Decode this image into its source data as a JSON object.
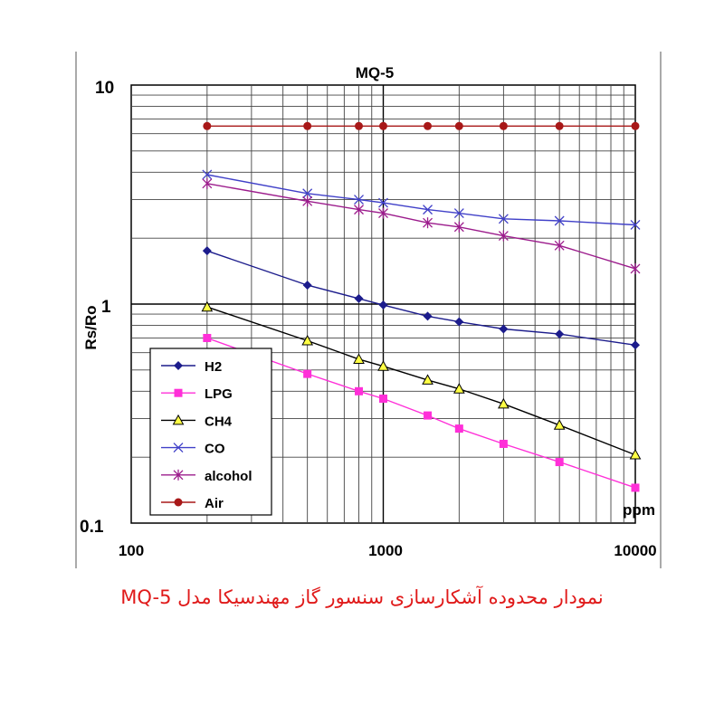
{
  "chart_data": {
    "type": "line",
    "title": "MQ-5",
    "xlabel": "ppm",
    "ylabel": "Rs/Ro",
    "x_scale": "log",
    "y_scale": "log",
    "xlim": [
      100,
      10000
    ],
    "ylim": [
      0.1,
      10
    ],
    "x_ticks": [
      "100",
      "1000",
      "10000"
    ],
    "y_ticks": [
      "0.1",
      "1",
      "10"
    ],
    "grid": true,
    "legend_position": "bottom-left",
    "x": [
      200,
      500,
      800,
      1000,
      1500,
      2000,
      3000,
      5000,
      10000
    ],
    "series": [
      {
        "name": "H2",
        "color": "#1c1c8c",
        "marker": "diamond",
        "values": [
          1.75,
          1.22,
          1.06,
          0.99,
          0.88,
          0.83,
          0.77,
          0.73,
          0.65
        ]
      },
      {
        "name": "LPG",
        "color": "#ff2fd8",
        "marker": "square",
        "values": [
          0.7,
          0.48,
          0.4,
          0.37,
          0.31,
          0.27,
          0.23,
          0.19,
          0.145
        ]
      },
      {
        "name": "CH4",
        "color": "#000000",
        "marker": "triangle",
        "values": [
          0.97,
          0.68,
          0.56,
          0.52,
          0.45,
          0.41,
          0.35,
          0.28,
          0.205
        ]
      },
      {
        "name": "CO",
        "color": "#4040c8",
        "marker": "x",
        "values": [
          3.9,
          3.2,
          3.0,
          2.9,
          2.7,
          2.6,
          2.45,
          2.4,
          2.3
        ]
      },
      {
        "name": "alcohol",
        "color": "#9c1c8c",
        "marker": "star",
        "values": [
          3.55,
          2.95,
          2.7,
          2.6,
          2.35,
          2.25,
          2.05,
          1.85,
          1.45
        ]
      },
      {
        "name": "Air",
        "color": "#a81818",
        "marker": "circle",
        "values": [
          6.5,
          6.5,
          6.5,
          6.5,
          6.5,
          6.5,
          6.5,
          6.5,
          6.5
        ]
      }
    ]
  },
  "caption": "نمودار محدوده آشکارسازی سنسور گاز مهندسیکا مدل MQ-5"
}
